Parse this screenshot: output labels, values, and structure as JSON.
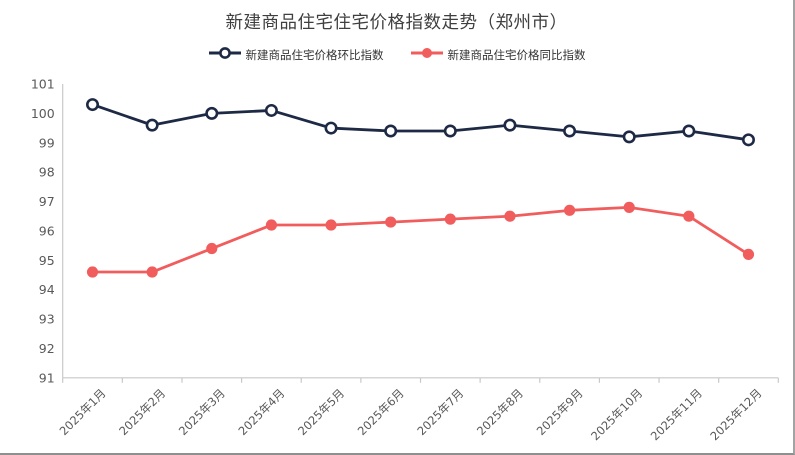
{
  "window": {
    "background": "#ffffff",
    "border_right_color": "#a3a3a3",
    "border_bottom_color": "#8f8f8f"
  },
  "chart_data": {
    "type": "line",
    "title": "新建商品住宅住宅价格指数走势（郑州市）",
    "title_color": "#3f3f3f",
    "categories": [
      "2025年1月",
      "2025年2月",
      "2025年3月",
      "2025年4月",
      "2025年5月",
      "2025年6月",
      "2025年7月",
      "2025年8月",
      "2025年9月",
      "2025年10月",
      "2025年11月",
      "2025年12月"
    ],
    "series": [
      {
        "name": "新建商品住宅价格环比指数",
        "color": "#1e2a45",
        "marker": "hollow-circle",
        "values": [
          100.3,
          99.6,
          100.0,
          100.1,
          99.5,
          99.4,
          99.4,
          99.6,
          99.4,
          99.2,
          99.4,
          99.1
        ]
      },
      {
        "name": "新建商品住宅价格同比指数",
        "color": "#f15d5d",
        "marker": "filled-circle",
        "values": [
          94.6,
          94.6,
          95.4,
          96.2,
          96.2,
          96.3,
          96.4,
          96.5,
          96.7,
          96.8,
          96.5,
          95.2
        ]
      }
    ],
    "ylim": [
      91,
      101
    ],
    "ytick_step": 1,
    "yticks": [
      91,
      92,
      93,
      94,
      95,
      96,
      97,
      98,
      99,
      100,
      101
    ],
    "xlabel": "",
    "ylabel": "",
    "legend_position": "top",
    "grid": false,
    "axis_color": "#c9c9c9",
    "tick_label_color": "#595959"
  }
}
